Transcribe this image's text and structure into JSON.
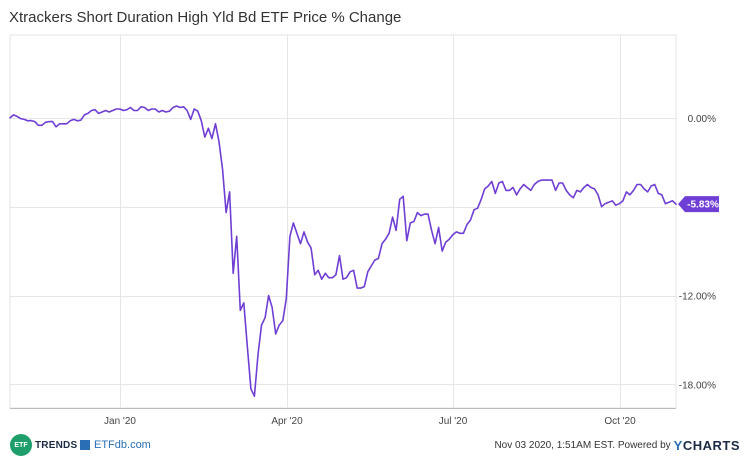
{
  "chart_data": {
    "type": "line",
    "title": "Xtrackers Short Duration High Yld Bd ETF Price % Change",
    "x_ticks": [
      "Jan '20",
      "Apr '20",
      "Jul '20",
      "Oct '20"
    ],
    "y_ticks": [
      "0.00%",
      "-6.00%",
      "-12.00%",
      "-18.00%"
    ],
    "y_tick_values": [
      0,
      -6,
      -12,
      -18
    ],
    "ylim": [
      -19.6,
      5.6
    ],
    "grid": true,
    "last_value_label": "-5.83%",
    "line_color": "#6f3ed4",
    "series": [
      {
        "values": [
          0.0,
          0.2,
          0.1,
          -0.05,
          -0.1,
          -0.2,
          -0.18,
          -0.25,
          -0.5,
          -0.5,
          -0.3,
          -0.25,
          -0.25,
          -0.6,
          -0.4,
          -0.4,
          -0.4,
          -0.2,
          -0.1,
          -0.2,
          -0.15,
          0.2,
          0.3,
          0.5,
          0.55,
          0.3,
          0.4,
          0.5,
          0.4,
          0.5,
          0.6,
          0.6,
          0.5,
          0.55,
          0.7,
          0.5,
          0.5,
          0.75,
          0.7,
          0.5,
          0.6,
          0.6,
          0.4,
          0.5,
          0.4,
          0.45,
          0.7,
          0.8,
          0.7,
          0.75,
          0.5,
          -0.1,
          0.6,
          0.45,
          -0.2,
          -1.3,
          -0.7,
          -1.4,
          -0.4,
          -1.6,
          -3.5,
          -6.4,
          -5.0,
          -10.5,
          -8.0,
          -13.0,
          -12.5,
          -15.5,
          -18.3,
          -18.8,
          -16.0,
          -14.0,
          -13.5,
          -12.0,
          -12.8,
          -14.6,
          -14.0,
          -13.7,
          -12.2,
          -8.0,
          -7.1,
          -7.8,
          -8.5,
          -7.7,
          -8.4,
          -8.8,
          -10.6,
          -10.3,
          -10.9,
          -10.5,
          -10.8,
          -10.8,
          -10.6,
          -9.3,
          -10.9,
          -10.8,
          -10.4,
          -10.3,
          -11.5,
          -11.5,
          -11.4,
          -10.4,
          -10.0,
          -9.6,
          -9.5,
          -8.5,
          -8.2,
          -7.8,
          -6.7,
          -7.6,
          -5.5,
          -5.3,
          -8.3,
          -7.1,
          -7.0,
          -6.4,
          -6.6,
          -6.5,
          -6.5,
          -7.6,
          -8.5,
          -7.4,
          -9.0,
          -8.4,
          -8.2,
          -7.9,
          -7.7,
          -7.8,
          -7.8,
          -7.2,
          -6.9,
          -6.2,
          -6.1,
          -5.5,
          -4.8,
          -4.6,
          -4.3,
          -5.1,
          -4.4,
          -4.3,
          -4.9,
          -4.9,
          -4.7,
          -5.2,
          -4.8,
          -4.5,
          -4.7,
          -4.9,
          -4.5,
          -4.3,
          -4.2,
          -4.2,
          -4.2,
          -4.2,
          -4.9,
          -4.4,
          -4.4,
          -4.9,
          -5.2,
          -5.4,
          -4.9,
          -5.0,
          -4.7,
          -4.5,
          -4.7,
          -4.8,
          -5.2,
          -6.0,
          -5.8,
          -5.7,
          -5.6,
          -5.9,
          -5.8,
          -5.6,
          -5.0,
          -5.2,
          -4.9,
          -4.5,
          -4.5,
          -4.8,
          -5.0,
          -4.6,
          -4.5,
          -5.1,
          -5.2,
          -5.8,
          -5.7,
          -5.6,
          -5.83
        ]
      }
    ]
  },
  "footer": {
    "etftrends_badge": "ETF",
    "etftrends_text": "TRENDS",
    "etfdb_text": "ETFdb.com",
    "credit_text": "Nov 03 2020, 1:51AM EST. Powered by",
    "ycharts_y": "Y",
    "ycharts_rest": "CHARTS"
  }
}
